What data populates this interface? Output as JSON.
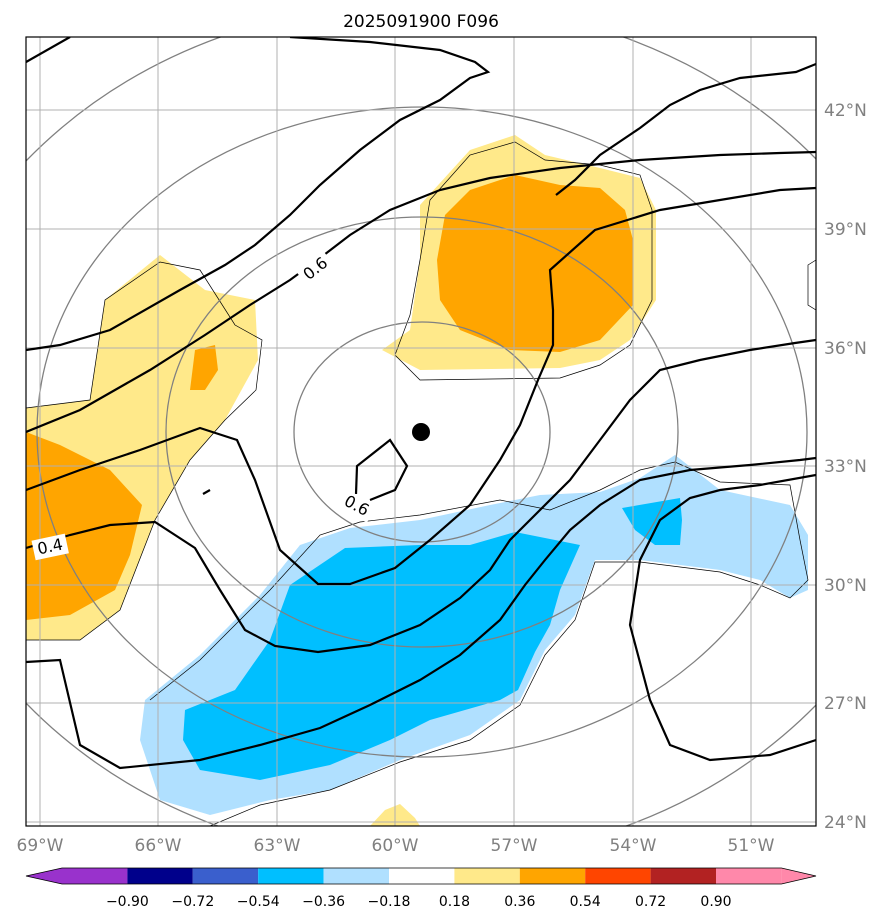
{
  "title": "2025091900 F096",
  "map": {
    "lon_labels": [
      "69°W",
      "66°W",
      "63°W",
      "60°W",
      "57°W",
      "54°W",
      "51°W"
    ],
    "lat_labels": [
      "42°N",
      "39°N",
      "36°N",
      "33°N",
      "30°N",
      "27°N",
      "24°N"
    ],
    "contour_labels": [
      "0.6",
      "0.6",
      "0.4"
    ],
    "center_marker": "storm-center-dot"
  },
  "colorbar": {
    "ticks": [
      "−0.90",
      "−0.72",
      "−0.54",
      "−0.36",
      "−0.18",
      "0.18",
      "0.36",
      "0.54",
      "0.72",
      "0.90"
    ],
    "colors": [
      "#9932cc",
      "#00008b",
      "#3a5fcd",
      "#00bfff",
      "#b0e0ff",
      "#ffffff",
      "#ffe98a",
      "#ffa500",
      "#ff4500",
      "#b22222",
      "#ff88aa"
    ]
  }
}
